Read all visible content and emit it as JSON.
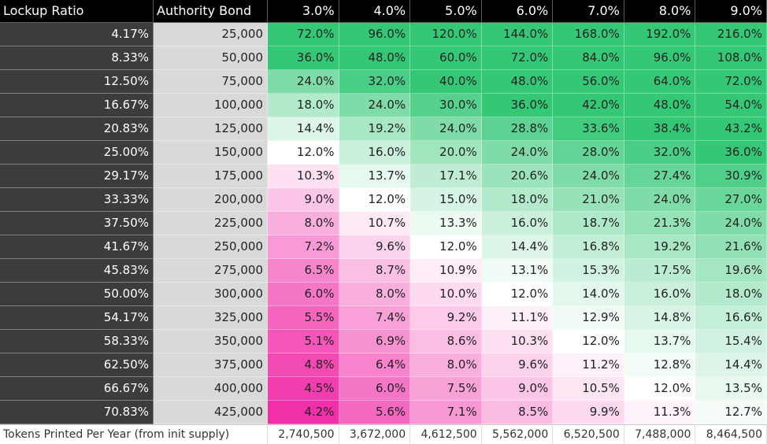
{
  "table": {
    "header": [
      "Lockup Ratio",
      "Authority Bond",
      "3.0%",
      "4.0%",
      "5.0%",
      "6.0%",
      "7.0%",
      "8.0%",
      "9.0%"
    ],
    "rows": [
      [
        "4.17%",
        "25,000",
        "72.0%",
        "96.0%",
        "120.0%",
        "144.0%",
        "168.0%",
        "192.0%",
        "216.0%"
      ],
      [
        "8.33%",
        "50,000",
        "36.0%",
        "48.0%",
        "60.0%",
        "72.0%",
        "84.0%",
        "96.0%",
        "108.0%"
      ],
      [
        "12.50%",
        "75,000",
        "24.0%",
        "32.0%",
        "40.0%",
        "48.0%",
        "56.0%",
        "64.0%",
        "72.0%"
      ],
      [
        "16.67%",
        "100,000",
        "18.0%",
        "24.0%",
        "30.0%",
        "36.0%",
        "42.0%",
        "48.0%",
        "54.0%"
      ],
      [
        "20.83%",
        "125,000",
        "14.4%",
        "19.2%",
        "24.0%",
        "28.8%",
        "33.6%",
        "38.4%",
        "43.2%"
      ],
      [
        "25.00%",
        "150,000",
        "12.0%",
        "16.0%",
        "20.0%",
        "24.0%",
        "28.0%",
        "32.0%",
        "36.0%"
      ],
      [
        "29.17%",
        "175,000",
        "10.3%",
        "13.7%",
        "17.1%",
        "20.6%",
        "24.0%",
        "27.4%",
        "30.9%"
      ],
      [
        "33.33%",
        "200,000",
        "9.0%",
        "12.0%",
        "15.0%",
        "18.0%",
        "21.0%",
        "24.0%",
        "27.0%"
      ],
      [
        "37.50%",
        "225,000",
        "8.0%",
        "10.7%",
        "13.3%",
        "16.0%",
        "18.7%",
        "21.3%",
        "24.0%"
      ],
      [
        "41.67%",
        "250,000",
        "7.2%",
        "9.6%",
        "12.0%",
        "14.4%",
        "16.8%",
        "19.2%",
        "21.6%"
      ],
      [
        "45.83%",
        "275,000",
        "6.5%",
        "8.7%",
        "10.9%",
        "13.1%",
        "15.3%",
        "17.5%",
        "19.6%"
      ],
      [
        "50.00%",
        "300,000",
        "6.0%",
        "8.0%",
        "10.0%",
        "12.0%",
        "14.0%",
        "16.0%",
        "18.0%"
      ],
      [
        "54.17%",
        "325,000",
        "5.5%",
        "7.4%",
        "9.2%",
        "11.1%",
        "12.9%",
        "14.8%",
        "16.6%"
      ],
      [
        "58.33%",
        "350,000",
        "5.1%",
        "6.9%",
        "8.6%",
        "10.3%",
        "12.0%",
        "13.7%",
        "15.4%"
      ],
      [
        "62.50%",
        "375,000",
        "4.8%",
        "6.4%",
        "8.0%",
        "9.6%",
        "11.2%",
        "12.8%",
        "14.4%"
      ],
      [
        "66.67%",
        "400,000",
        "4.5%",
        "6.0%",
        "7.5%",
        "9.0%",
        "10.5%",
        "12.0%",
        "13.5%"
      ],
      [
        "70.83%",
        "425,000",
        "4.2%",
        "5.6%",
        "7.1%",
        "8.5%",
        "9.9%",
        "11.3%",
        "12.7%"
      ]
    ],
    "footer": [
      "Tokens Printed Per Year (from init supply)",
      "2,740,500",
      "3,672,000",
      "4,612,500",
      "5,562,000",
      "6,520,500",
      "7,488,000",
      "8,464,500"
    ]
  }
}
